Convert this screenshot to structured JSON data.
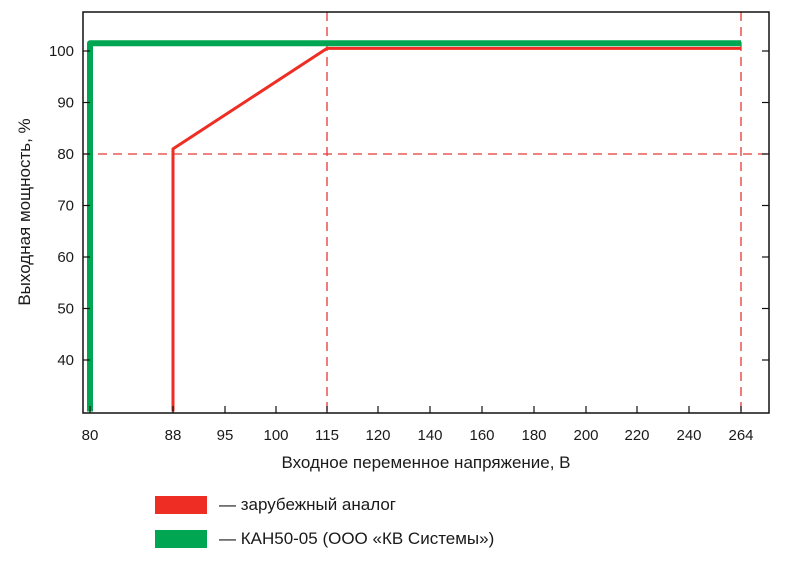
{
  "chart_data": {
    "type": "line",
    "title": "",
    "xlabel": "Входное переменное напряжение, В",
    "ylabel": "Выходная мощность, %",
    "xlim": [
      80,
      264
    ],
    "ylim": [
      30,
      105
    ],
    "x_ticks": [
      "80",
      "88",
      "95",
      "100",
      "115",
      "120",
      "140",
      "160",
      "180",
      "200",
      "220",
      "240",
      "264"
    ],
    "y_ticks": [
      40,
      50,
      60,
      70,
      80,
      90,
      100
    ],
    "reference_lines": [
      {
        "axis": "y",
        "value": 80,
        "color": "#e53935",
        "style": "dashed"
      },
      {
        "axis": "x",
        "value": "115",
        "color": "#e53935",
        "style": "dashed"
      },
      {
        "axis": "x",
        "value": "264",
        "color": "#e53935",
        "style": "dashed"
      }
    ],
    "series": [
      {
        "name": "— зарубежный аналог",
        "color": "#ee2e24",
        "points": [
          {
            "x": "88",
            "y": 30
          },
          {
            "x": "88",
            "y": 81
          },
          {
            "x": "115",
            "y": 100.5
          },
          {
            "x": "264",
            "y": 100.5
          }
        ]
      },
      {
        "name": "— КАН50-05 (ООО «КВ Системы»)",
        "color": "#00a651",
        "points": [
          {
            "x": "80",
            "y": 30
          },
          {
            "x": "80",
            "y": 100
          },
          {
            "x": "80",
            "y": 101.5
          },
          {
            "x": "264",
            "y": 101.5
          }
        ]
      }
    ],
    "legend_position": "bottom",
    "grid": false
  }
}
